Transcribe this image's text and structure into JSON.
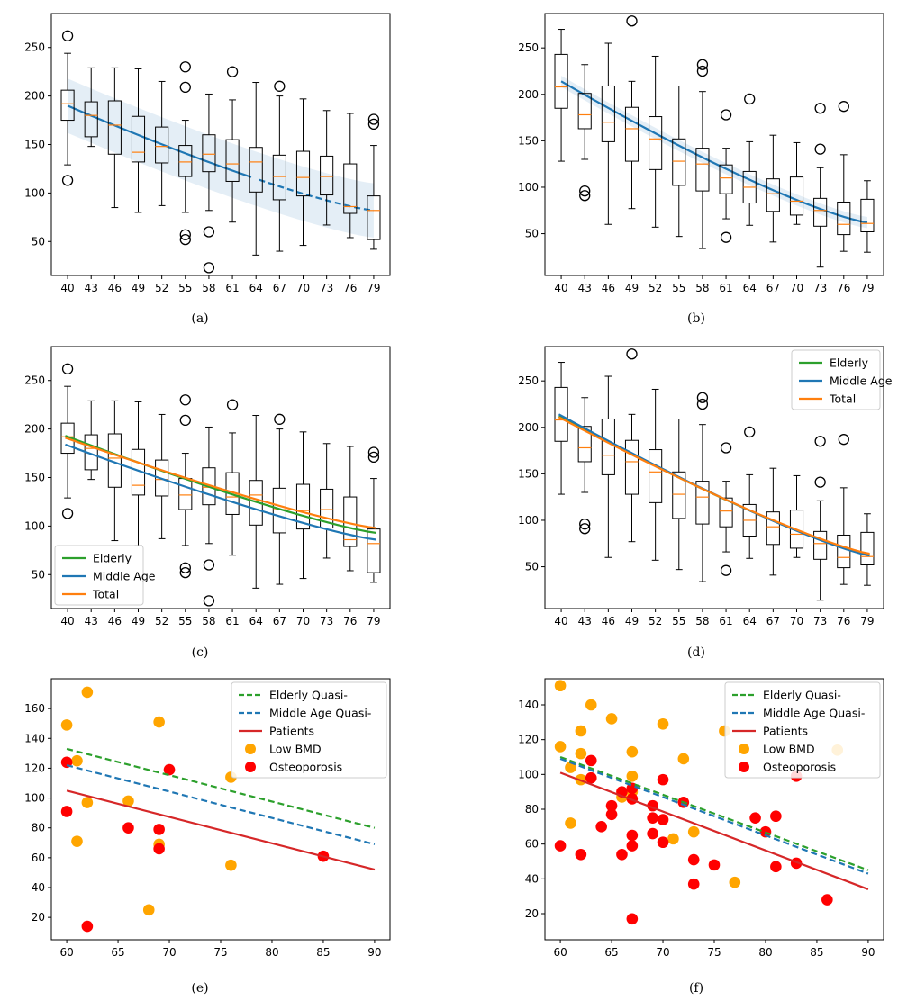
{
  "chart_data": [
    {
      "type": "box",
      "panel": "a",
      "caption": "(a)",
      "categories": [
        40,
        43,
        46,
        49,
        52,
        55,
        58,
        61,
        64,
        67,
        70,
        73,
        76,
        79
      ],
      "ylim": [
        15,
        285
      ],
      "yticks": [
        50,
        100,
        150,
        200,
        250
      ],
      "boxes": [
        {
          "lo": 129,
          "q1": 175,
          "med": 192,
          "q3": 206,
          "hi": 244,
          "out": [
            262,
            113
          ]
        },
        {
          "lo": 148,
          "q1": 158,
          "med": 180,
          "q3": 194,
          "hi": 229,
          "out": []
        },
        {
          "lo": 85,
          "q1": 140,
          "med": 170,
          "q3": 195,
          "hi": 229,
          "out": []
        },
        {
          "lo": 80,
          "q1": 132,
          "med": 142,
          "q3": 179,
          "hi": 228,
          "out": []
        },
        {
          "lo": 87,
          "q1": 131,
          "med": 148,
          "q3": 168,
          "hi": 215,
          "out": []
        },
        {
          "lo": 80,
          "q1": 117,
          "med": 132,
          "q3": 149,
          "hi": 175,
          "out": [
            230,
            209,
            57,
            52
          ]
        },
        {
          "lo": 82,
          "q1": 122,
          "med": 140,
          "q3": 160,
          "hi": 202,
          "out": [
            60,
            23
          ]
        },
        {
          "lo": 70,
          "q1": 112,
          "med": 130,
          "q3": 155,
          "hi": 196,
          "out": [
            225
          ]
        },
        {
          "lo": 36,
          "q1": 101,
          "med": 132,
          "q3": 147,
          "hi": 214,
          "out": []
        },
        {
          "lo": 40,
          "q1": 93,
          "med": 117,
          "q3": 139,
          "hi": 200,
          "out": [
            210
          ]
        },
        {
          "lo": 46,
          "q1": 97,
          "med": 116,
          "q3": 143,
          "hi": 197,
          "out": []
        },
        {
          "lo": 67,
          "q1": 98,
          "med": 117,
          "q3": 138,
          "hi": 185,
          "out": []
        },
        {
          "lo": 54,
          "q1": 79,
          "med": 86,
          "q3": 130,
          "hi": 182,
          "out": []
        },
        {
          "lo": 42,
          "q1": 52,
          "med": 82,
          "q3": 97,
          "hi": 149,
          "out": [
            176,
            171
          ]
        }
      ],
      "fit": {
        "name": "fit",
        "color": "#1f77b4",
        "start": 190,
        "end": 82,
        "band": 28,
        "dashed_from_index": 8
      }
    },
    {
      "type": "box",
      "panel": "b",
      "caption": "(b)",
      "categories": [
        40,
        43,
        46,
        49,
        52,
        55,
        58,
        61,
        64,
        67,
        70,
        73,
        76,
        79
      ],
      "ylim": [
        5,
        287
      ],
      "yticks": [
        50,
        100,
        150,
        200,
        250
      ],
      "boxes": [
        {
          "lo": 128,
          "q1": 185,
          "med": 208,
          "q3": 243,
          "hi": 270,
          "out": []
        },
        {
          "lo": 130,
          "q1": 163,
          "med": 178,
          "q3": 201,
          "hi": 232,
          "out": [
            96,
            91
          ]
        },
        {
          "lo": 60,
          "q1": 149,
          "med": 170,
          "q3": 209,
          "hi": 255,
          "out": []
        },
        {
          "lo": 77,
          "q1": 128,
          "med": 163,
          "q3": 186,
          "hi": 214,
          "out": [
            279
          ]
        },
        {
          "lo": 57,
          "q1": 119,
          "med": 152,
          "q3": 176,
          "hi": 241,
          "out": []
        },
        {
          "lo": 47,
          "q1": 102,
          "med": 128,
          "q3": 152,
          "hi": 209,
          "out": []
        },
        {
          "lo": 34,
          "q1": 96,
          "med": 125,
          "q3": 142,
          "hi": 203,
          "out": [
            232,
            225
          ]
        },
        {
          "lo": 66,
          "q1": 93,
          "med": 110,
          "q3": 124,
          "hi": 142,
          "out": [
            178,
            46
          ]
        },
        {
          "lo": 59,
          "q1": 83,
          "med": 100,
          "q3": 117,
          "hi": 149,
          "out": [
            195
          ]
        },
        {
          "lo": 41,
          "q1": 74,
          "med": 93,
          "q3": 109,
          "hi": 156,
          "out": []
        },
        {
          "lo": 60,
          "q1": 70,
          "med": 85,
          "q3": 111,
          "hi": 148,
          "out": []
        },
        {
          "lo": 14,
          "q1": 58,
          "med": 75,
          "q3": 88,
          "hi": 121,
          "out": [
            185,
            141
          ]
        },
        {
          "lo": 31,
          "q1": 49,
          "med": 60,
          "q3": 84,
          "hi": 135,
          "out": [
            187
          ]
        },
        {
          "lo": 30,
          "q1": 52,
          "med": 61,
          "q3": 87,
          "hi": 107,
          "out": []
        }
      ],
      "fit": {
        "name": "fit",
        "color": "#1f77b4",
        "start": 214,
        "end": 62,
        "band": 6,
        "dashed_from_index": 99
      }
    },
    {
      "type": "box",
      "panel": "c",
      "caption": "(c)",
      "categories": [
        40,
        43,
        46,
        49,
        52,
        55,
        58,
        61,
        64,
        67,
        70,
        73,
        76,
        79
      ],
      "ylim": [
        15,
        285
      ],
      "yticks": [
        50,
        100,
        150,
        200,
        250
      ],
      "boxes_from_panel": "a",
      "legend": {
        "position": "lower-left",
        "entries": [
          "Elderly",
          "Middle Age",
          "Total"
        ]
      },
      "series": [
        {
          "name": "Elderly",
          "color": "#2ca02c",
          "start": 193,
          "end": 93
        },
        {
          "name": "Middle Age",
          "color": "#1f77b4",
          "start": 184,
          "end": 86
        },
        {
          "name": "Total",
          "color": "#ff7f0e",
          "start": 191,
          "end": 98
        }
      ]
    },
    {
      "type": "box",
      "panel": "d",
      "caption": "(d)",
      "categories": [
        40,
        43,
        46,
        49,
        52,
        55,
        58,
        61,
        64,
        67,
        70,
        73,
        76,
        79
      ],
      "ylim": [
        5,
        287
      ],
      "yticks": [
        50,
        100,
        150,
        200,
        250
      ],
      "boxes_from_panel": "b",
      "legend": {
        "position": "upper-right",
        "entries": [
          "Elderly",
          "Middle Age",
          "Total"
        ]
      },
      "series": [
        {
          "name": "Elderly",
          "color": "#2ca02c",
          "start": 212,
          "end": 63
        },
        {
          "name": "Middle Age",
          "color": "#1f77b4",
          "start": 214,
          "end": 62
        },
        {
          "name": "Total",
          "color": "#ff7f0e",
          "start": 211,
          "end": 64
        }
      ]
    },
    {
      "type": "scatter",
      "panel": "e",
      "caption": "(e)",
      "xlim": [
        58.5,
        91.5
      ],
      "ylim": [
        5,
        180
      ],
      "xticks": [
        60,
        65,
        70,
        75,
        80,
        85,
        90
      ],
      "yticks": [
        20,
        40,
        60,
        80,
        100,
        120,
        140,
        160
      ],
      "legend": {
        "position": "upper-right",
        "entries": [
          "Elderly Quasi-",
          "Middle Age Quasi-",
          "Patients",
          "Low BMD",
          "Osteoporosis"
        ]
      },
      "lines": [
        {
          "name": "Elderly Quasi-",
          "color": "#2ca02c",
          "dashed": true,
          "x": [
            60,
            90
          ],
          "y": [
            133,
            80
          ]
        },
        {
          "name": "Middle Age Quasi-",
          "color": "#1f77b4",
          "dashed": true,
          "x": [
            60,
            90
          ],
          "y": [
            122,
            69
          ]
        },
        {
          "name": "Patients",
          "color": "#d62728",
          "dashed": false,
          "x": [
            60,
            90
          ],
          "y": [
            105,
            52
          ]
        }
      ],
      "scatter_series": [
        {
          "name": "Low BMD",
          "color": "#ffa500",
          "points": [
            [
              60,
              149
            ],
            [
              61,
              125
            ],
            [
              61,
              71
            ],
            [
              62,
              171
            ],
            [
              62,
              97
            ],
            [
              66,
              98
            ],
            [
              68,
              25
            ],
            [
              69,
              151
            ],
            [
              69,
              69
            ],
            [
              76,
              114
            ],
            [
              76,
              55
            ]
          ]
        },
        {
          "name": "Osteoporosis",
          "color": "#ff0000",
          "points": [
            [
              60,
              124
            ],
            [
              60,
              91
            ],
            [
              62,
              14
            ],
            [
              66,
              80
            ],
            [
              69,
              79
            ],
            [
              69,
              66
            ],
            [
              70,
              119
            ],
            [
              85,
              61
            ]
          ]
        }
      ]
    },
    {
      "type": "scatter",
      "panel": "f",
      "caption": "(f)",
      "xlim": [
        58.5,
        91.5
      ],
      "ylim": [
        5,
        155
      ],
      "xticks": [
        60,
        65,
        70,
        75,
        80,
        85,
        90
      ],
      "yticks": [
        20,
        40,
        60,
        80,
        100,
        120,
        140
      ],
      "legend": {
        "position": "upper-right",
        "entries": [
          "Elderly Quasi-",
          "Middle Age Quasi-",
          "Patients",
          "Low BMD",
          "Osteoporosis"
        ]
      },
      "lines": [
        {
          "name": "Elderly Quasi-",
          "color": "#2ca02c",
          "dashed": true,
          "x": [
            60,
            90
          ],
          "y": [
            110,
            45
          ]
        },
        {
          "name": "Middle Age Quasi-",
          "color": "#1f77b4",
          "dashed": true,
          "x": [
            60,
            90
          ],
          "y": [
            109,
            43
          ]
        },
        {
          "name": "Patients",
          "color": "#d62728",
          "dashed": false,
          "x": [
            60,
            90
          ],
          "y": [
            101,
            34
          ]
        }
      ],
      "scatter_series": [
        {
          "name": "Low BMD",
          "color": "#ffa500",
          "points": [
            [
              60,
              151
            ],
            [
              60,
              116
            ],
            [
              61,
              72
            ],
            [
              61,
              104
            ],
            [
              62,
              125
            ],
            [
              62,
              112
            ],
            [
              62,
              97
            ],
            [
              63,
              140
            ],
            [
              65,
              132
            ],
            [
              66,
              87
            ],
            [
              67,
              113
            ],
            [
              67,
              99
            ],
            [
              67,
              90
            ],
            [
              70,
              129
            ],
            [
              71,
              63
            ],
            [
              72,
              109
            ],
            [
              73,
              67
            ],
            [
              76,
              125
            ],
            [
              77,
              38
            ],
            [
              87,
              114
            ]
          ]
        },
        {
          "name": "Osteoporosis",
          "color": "#ff0000",
          "points": [
            [
              60,
              59
            ],
            [
              62,
              54
            ],
            [
              63,
              108
            ],
            [
              63,
              98
            ],
            [
              64,
              70
            ],
            [
              65,
              82
            ],
            [
              65,
              77
            ],
            [
              66,
              54
            ],
            [
              66,
              90
            ],
            [
              67,
              92
            ],
            [
              67,
              86
            ],
            [
              67,
              65
            ],
            [
              67,
              59
            ],
            [
              67,
              17
            ],
            [
              69,
              82
            ],
            [
              69,
              75
            ],
            [
              69,
              66
            ],
            [
              70,
              97
            ],
            [
              70,
              74
            ],
            [
              70,
              61
            ],
            [
              72,
              84
            ],
            [
              73,
              51
            ],
            [
              73,
              37
            ],
            [
              75,
              48
            ],
            [
              79,
              75
            ],
            [
              80,
              67
            ],
            [
              81,
              76
            ],
            [
              81,
              47
            ],
            [
              83,
              99
            ],
            [
              83,
              49
            ],
            [
              86,
              28
            ]
          ]
        }
      ]
    }
  ]
}
